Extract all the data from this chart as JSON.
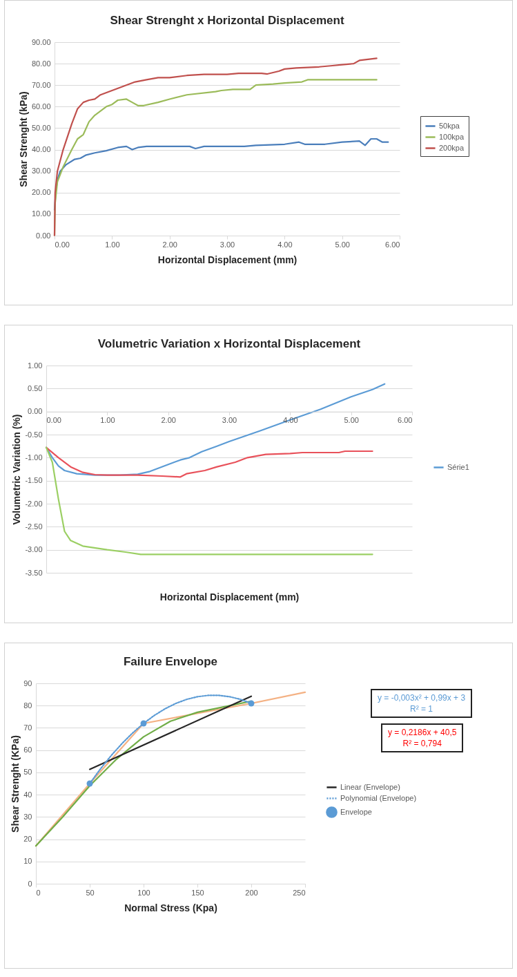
{
  "chart_data": [
    {
      "type": "line",
      "title": "Shear Strenght x Horizontal Displacement",
      "xlabel": "Horizontal Displacement (mm)",
      "ylabel": "Shear Strenght (kPa)",
      "xlim": [
        0,
        6
      ],
      "xticks": [
        {
          "value": 0,
          "label": "0.00"
        },
        {
          "value": 1,
          "label": "1.00"
        },
        {
          "value": 2,
          "label": "2.00"
        },
        {
          "value": 3,
          "label": "3.00"
        },
        {
          "value": 4,
          "label": "4.00"
        },
        {
          "value": 5,
          "label": "5.00"
        },
        {
          "value": 6,
          "label": "6.00"
        }
      ],
      "ylim": [
        0,
        90
      ],
      "yticks": [
        {
          "value": 0,
          "label": "0.00"
        },
        {
          "value": 10,
          "label": "10.00"
        },
        {
          "value": 20,
          "label": "20.00"
        },
        {
          "value": 30,
          "label": "30.00"
        },
        {
          "value": 40,
          "label": "40.00"
        },
        {
          "value": 50,
          "label": "50.00"
        },
        {
          "value": 60,
          "label": "60.00"
        },
        {
          "value": 70,
          "label": "70.00"
        },
        {
          "value": 80,
          "label": "80.00"
        },
        {
          "value": 90,
          "label": "90.00"
        }
      ],
      "grid": "y",
      "legend": "right",
      "series": [
        {
          "name": "50kpa",
          "color": "#4a7ebb",
          "x": [
            0,
            0.02,
            0.05,
            0.1,
            0.2,
            0.35,
            0.45,
            0.55,
            0.7,
            0.9,
            1.1,
            1.25,
            1.35,
            1.45,
            1.6,
            2.0,
            2.35,
            2.45,
            2.6,
            3.0,
            3.3,
            3.5,
            4.0,
            4.25,
            4.35,
            4.7,
            5.0,
            5.3,
            5.4,
            5.5,
            5.6,
            5.7,
            5.8
          ],
          "values": [
            12,
            20,
            26,
            30,
            33,
            35.5,
            36,
            37.5,
            38.5,
            39.5,
            41,
            41.5,
            40,
            41,
            41.5,
            41.5,
            41.5,
            40.5,
            41.5,
            41.5,
            41.5,
            42,
            42.5,
            43.5,
            42.5,
            42.5,
            43.5,
            44,
            42,
            45,
            45,
            43.5,
            43.5
          ]
        },
        {
          "name": "100kpa",
          "color": "#9bbb59",
          "x": [
            0,
            0.01,
            0.05,
            0.15,
            0.3,
            0.4,
            0.5,
            0.6,
            0.7,
            0.9,
            1.0,
            1.1,
            1.25,
            1.35,
            1.45,
            1.55,
            1.8,
            2.0,
            2.3,
            2.8,
            2.9,
            3.1,
            3.4,
            3.5,
            3.8,
            4.0,
            4.3,
            4.4,
            5.0,
            5.6
          ],
          "values": [
            0,
            15,
            25,
            32,
            40,
            45,
            47,
            53,
            56,
            60,
            61,
            63,
            63.5,
            62,
            60.5,
            60.5,
            62,
            63.5,
            65.5,
            67,
            67.5,
            68,
            68,
            70,
            70.5,
            71,
            71.5,
            72.5,
            72.5,
            72.5
          ]
        },
        {
          "name": "200kpa",
          "color": "#c0504d",
          "x": [
            0,
            0.01,
            0.05,
            0.15,
            0.3,
            0.4,
            0.5,
            0.6,
            0.7,
            0.8,
            1.0,
            1.2,
            1.4,
            1.6,
            1.8,
            2.0,
            2.3,
            2.6,
            3.0,
            3.2,
            3.6,
            3.7,
            3.9,
            4.0,
            4.2,
            4.6,
            4.8,
            5.0,
            5.2,
            5.3,
            5.6
          ],
          "values": [
            0,
            20,
            30,
            40,
            52,
            59,
            62,
            63,
            63.5,
            65.5,
            67.5,
            69.5,
            71.5,
            72.5,
            73.5,
            73.5,
            74.5,
            75,
            75,
            75.5,
            75.5,
            75.2,
            76.5,
            77.5,
            78,
            78.5,
            79,
            79.5,
            80,
            81.5,
            82.5
          ]
        }
      ]
    },
    {
      "type": "line",
      "title": "Volumetric Variation x Horizontal Displacement",
      "xlabel": "Horizontal Displacement (mm)",
      "ylabel": "Volumetric Variation (%)",
      "xlim": [
        0,
        6
      ],
      "xticks": [
        {
          "value": 0,
          "label": "0.00"
        },
        {
          "value": 1,
          "label": "1.00"
        },
        {
          "value": 2,
          "label": "2.00"
        },
        {
          "value": 3,
          "label": "3.00"
        },
        {
          "value": 4,
          "label": "4.00"
        },
        {
          "value": 5,
          "label": "5.00"
        },
        {
          "value": 6,
          "label": "6.00"
        }
      ],
      "ylim": [
        -3.5,
        1
      ],
      "yticks": [
        {
          "value": -3.5,
          "label": "-3.50"
        },
        {
          "value": -3,
          "label": "-3.00"
        },
        {
          "value": -2.5,
          "label": "-2.50"
        },
        {
          "value": -2,
          "label": "-2.00"
        },
        {
          "value": -1.5,
          "label": "-1.50"
        },
        {
          "value": -1,
          "label": "-1.00"
        },
        {
          "value": -0.5,
          "label": "-0.50"
        },
        {
          "value": 0,
          "label": "0.00"
        },
        {
          "value": 0.5,
          "label": "0.50"
        },
        {
          "value": 1,
          "label": "1.00"
        }
      ],
      "grid": "y",
      "legend": "right",
      "series": [
        {
          "name": "Série1",
          "color": "#5b9bd5",
          "x": [
            0,
            0.1,
            0.2,
            0.3,
            0.5,
            0.8,
            1.2,
            1.5,
            1.7,
            2.0,
            2.2,
            2.35,
            2.55,
            2.8,
            3.0,
            3.5,
            4.0,
            4.5,
            5.0,
            5.35,
            5.55
          ],
          "values": [
            -0.78,
            -1.0,
            -1.18,
            -1.28,
            -1.35,
            -1.38,
            -1.38,
            -1.36,
            -1.3,
            -1.15,
            -1.05,
            -1.0,
            -0.87,
            -0.75,
            -0.65,
            -0.42,
            -0.18,
            0.05,
            0.32,
            0.48,
            0.6
          ]
        },
        {
          "color": "#e8515a",
          "x": [
            0,
            0.2,
            0.4,
            0.6,
            0.8,
            1.0,
            1.5,
            1.9,
            2.2,
            2.3,
            2.6,
            2.8,
            3.1,
            3.3,
            3.6,
            4.0,
            4.2,
            4.8,
            4.9,
            5.35
          ],
          "values": [
            -0.78,
            -1.0,
            -1.2,
            -1.32,
            -1.37,
            -1.38,
            -1.38,
            -1.4,
            -1.42,
            -1.35,
            -1.28,
            -1.2,
            -1.1,
            -1.0,
            -0.93,
            -0.91,
            -0.89,
            -0.89,
            -0.86,
            -0.86
          ]
        },
        {
          "color": "#9bcf63",
          "x": [
            0,
            0.1,
            0.2,
            0.3,
            0.4,
            0.6,
            1.0,
            1.3,
            1.55,
            5.35
          ],
          "values": [
            -0.78,
            -1.1,
            -1.9,
            -2.6,
            -2.8,
            -2.92,
            -3.0,
            -3.05,
            -3.1,
            -3.1
          ]
        }
      ]
    },
    {
      "type": "line",
      "title": "Failure Envelope",
      "xlabel": "Normal Stress (Kpa)",
      "ylabel": "Shear Strenght (KPa)",
      "xlim": [
        0,
        250
      ],
      "xticks": [
        0,
        50,
        100,
        150,
        200,
        250
      ],
      "ylim": [
        0,
        90
      ],
      "yticks": [
        0,
        10,
        20,
        30,
        40,
        50,
        60,
        70,
        80,
        90
      ],
      "grid": "y",
      "legend": "right",
      "annotations": [
        "y = -0,003x² + 0,99x + 3",
        "R² = 1",
        "y = 0,2186x + 40,5",
        "R² = 0,794"
      ],
      "series": [
        {
          "color": "#f4b183",
          "x": [
            0,
            50,
            100,
            200,
            250
          ],
          "values": [
            17,
            45,
            72,
            81,
            86
          ]
        },
        {
          "color": "#70ad47",
          "x": [
            0,
            25,
            50,
            75,
            100,
            125,
            150,
            175,
            200
          ],
          "values": [
            17,
            30,
            44,
            56,
            66,
            73,
            77,
            79.5,
            82
          ]
        },
        {
          "name": "Linear (Envelope)",
          "color": "#262626",
          "x": [
            50,
            200
          ],
          "values": [
            51.4,
            84.2
          ]
        },
        {
          "name": "Polynomial (Envelope)",
          "color": "#5b9bd5",
          "line_style": "dotted",
          "x": [
            50,
            60,
            70,
            80,
            90,
            100,
            110,
            120,
            130,
            140,
            150,
            160,
            170,
            180,
            190,
            200
          ],
          "values": [
            45,
            51.6,
            57.6,
            63,
            67.8,
            72,
            75.6,
            78.6,
            81,
            82.8,
            84,
            84.6,
            84.6,
            84,
            82.8,
            81
          ]
        },
        {
          "name": "Envelope",
          "type": "scatter",
          "marker": "circle",
          "color": "#5b9bd5",
          "x": [
            50,
            100,
            200
          ],
          "values": [
            45,
            72,
            81
          ]
        }
      ]
    }
  ]
}
